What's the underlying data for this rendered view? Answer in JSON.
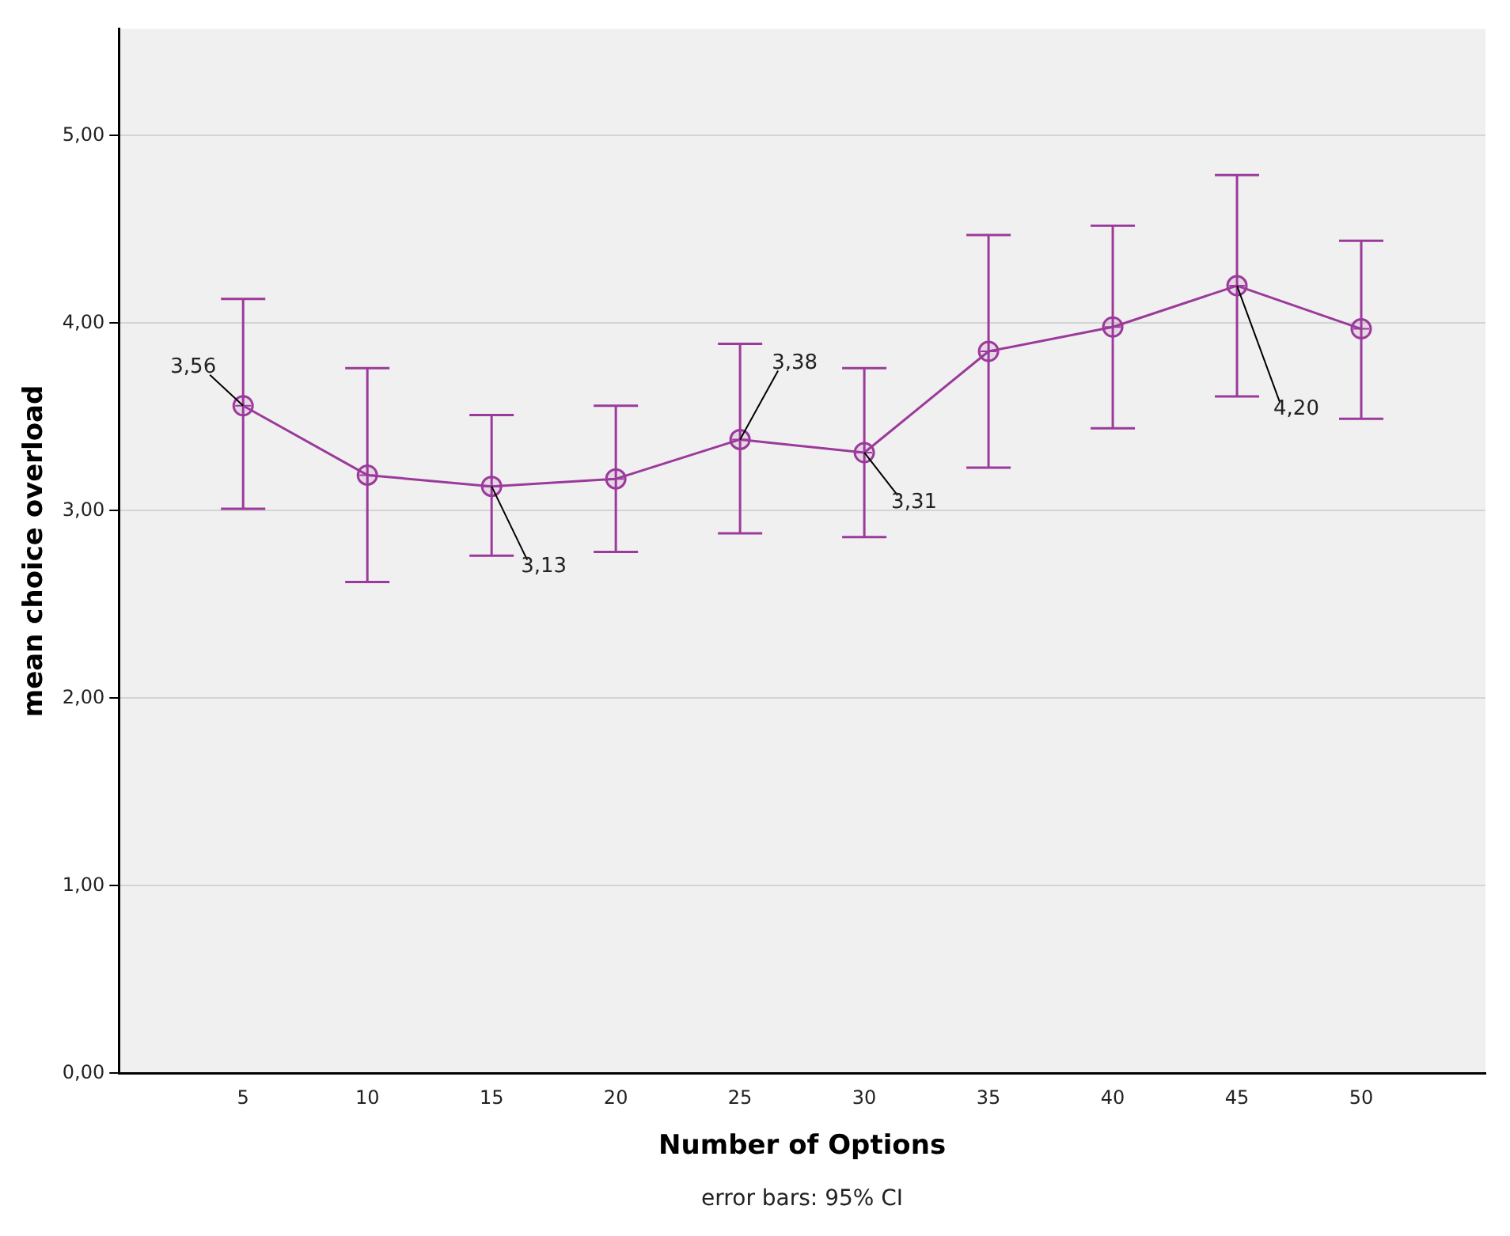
{
  "chart_data": {
    "type": "line",
    "xlabel": "Number of Options",
    "ylabel": "mean choice overload",
    "annotations": [
      "error bars: 95% CI"
    ],
    "x": [
      5,
      10,
      15,
      20,
      25,
      30,
      35,
      40,
      45,
      50
    ],
    "series": [
      {
        "color": "#9b3a9b",
        "values": [
          3.56,
          3.19,
          3.13,
          3.17,
          3.38,
          3.31,
          3.85,
          3.98,
          4.2,
          3.97
        ],
        "errors": [
          [
            3.01,
            4.13
          ],
          [
            2.62,
            3.76
          ],
          [
            2.76,
            3.51
          ],
          [
            2.78,
            3.56
          ],
          [
            2.88,
            3.89
          ],
          [
            2.86,
            3.76
          ],
          [
            3.23,
            4.47
          ],
          [
            3.44,
            4.52
          ],
          [
            3.61,
            4.79
          ],
          [
            3.49,
            4.44
          ]
        ],
        "value_labels": [
          "3,56",
          null,
          "3,13",
          null,
          "3,38",
          "3,31",
          null,
          null,
          "4,20",
          null
        ]
      }
    ],
    "xlim": [
      0,
      55
    ],
    "xticks": [
      5,
      10,
      15,
      20,
      25,
      30,
      35,
      40,
      45,
      50
    ],
    "ylim": [
      0,
      5.57
    ],
    "yticks": [
      {
        "value": 0,
        "label": "0,00"
      },
      {
        "value": 1,
        "label": "1,00"
      },
      {
        "value": 2,
        "label": "2,00"
      },
      {
        "value": 3,
        "label": "3,00"
      },
      {
        "value": 4,
        "label": "4,00"
      },
      {
        "value": 5,
        "label": "5,00"
      }
    ],
    "grid": "y",
    "legend": false,
    "marker": "circle",
    "line_style": "solid"
  }
}
